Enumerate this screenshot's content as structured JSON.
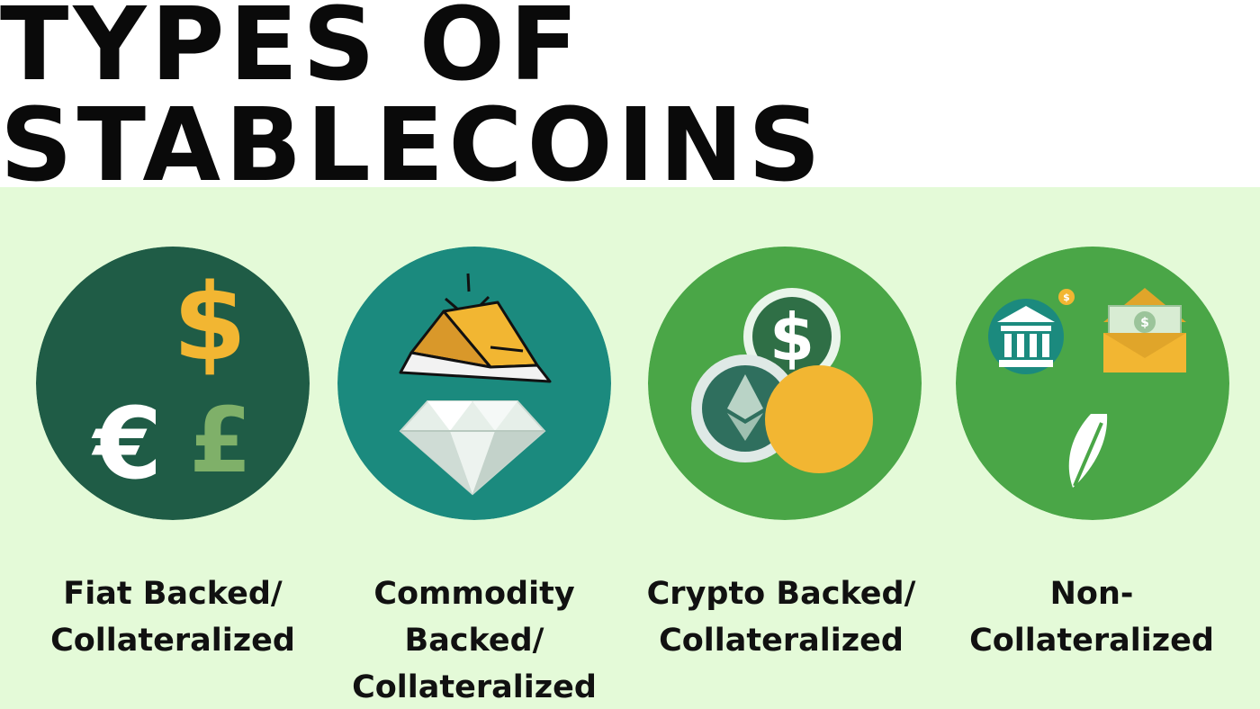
{
  "title": "TYPES OF STABLECOINS",
  "colors": {
    "panel_bg": "#e4fad8",
    "circle_fiat": "#1f5c46",
    "circle_commodity": "#1b8a7e",
    "circle_crypto": "#4aa647",
    "circle_non": "#4aa647",
    "gold": "#f2b632"
  },
  "types": [
    {
      "lines": [
        "Fiat Backed/",
        "Collateralized"
      ],
      "icons": [
        "dollar-icon",
        "euro-icon",
        "pound-icon"
      ]
    },
    {
      "lines": [
        "Commodity",
        "Backed/",
        "Collateralized"
      ],
      "icons": [
        "gold-bar-icon",
        "diamond-icon"
      ]
    },
    {
      "lines": [
        "Crypto Backed/",
        "Collateralized"
      ],
      "icons": [
        "dollar-coin-icon",
        "ethereum-coin-icon",
        "gold-coin-icon"
      ]
    },
    {
      "lines": [
        "Non-",
        "Collateralized"
      ],
      "icons": [
        "bank-icon",
        "cash-envelope-icon",
        "leaf-icon"
      ]
    }
  ]
}
